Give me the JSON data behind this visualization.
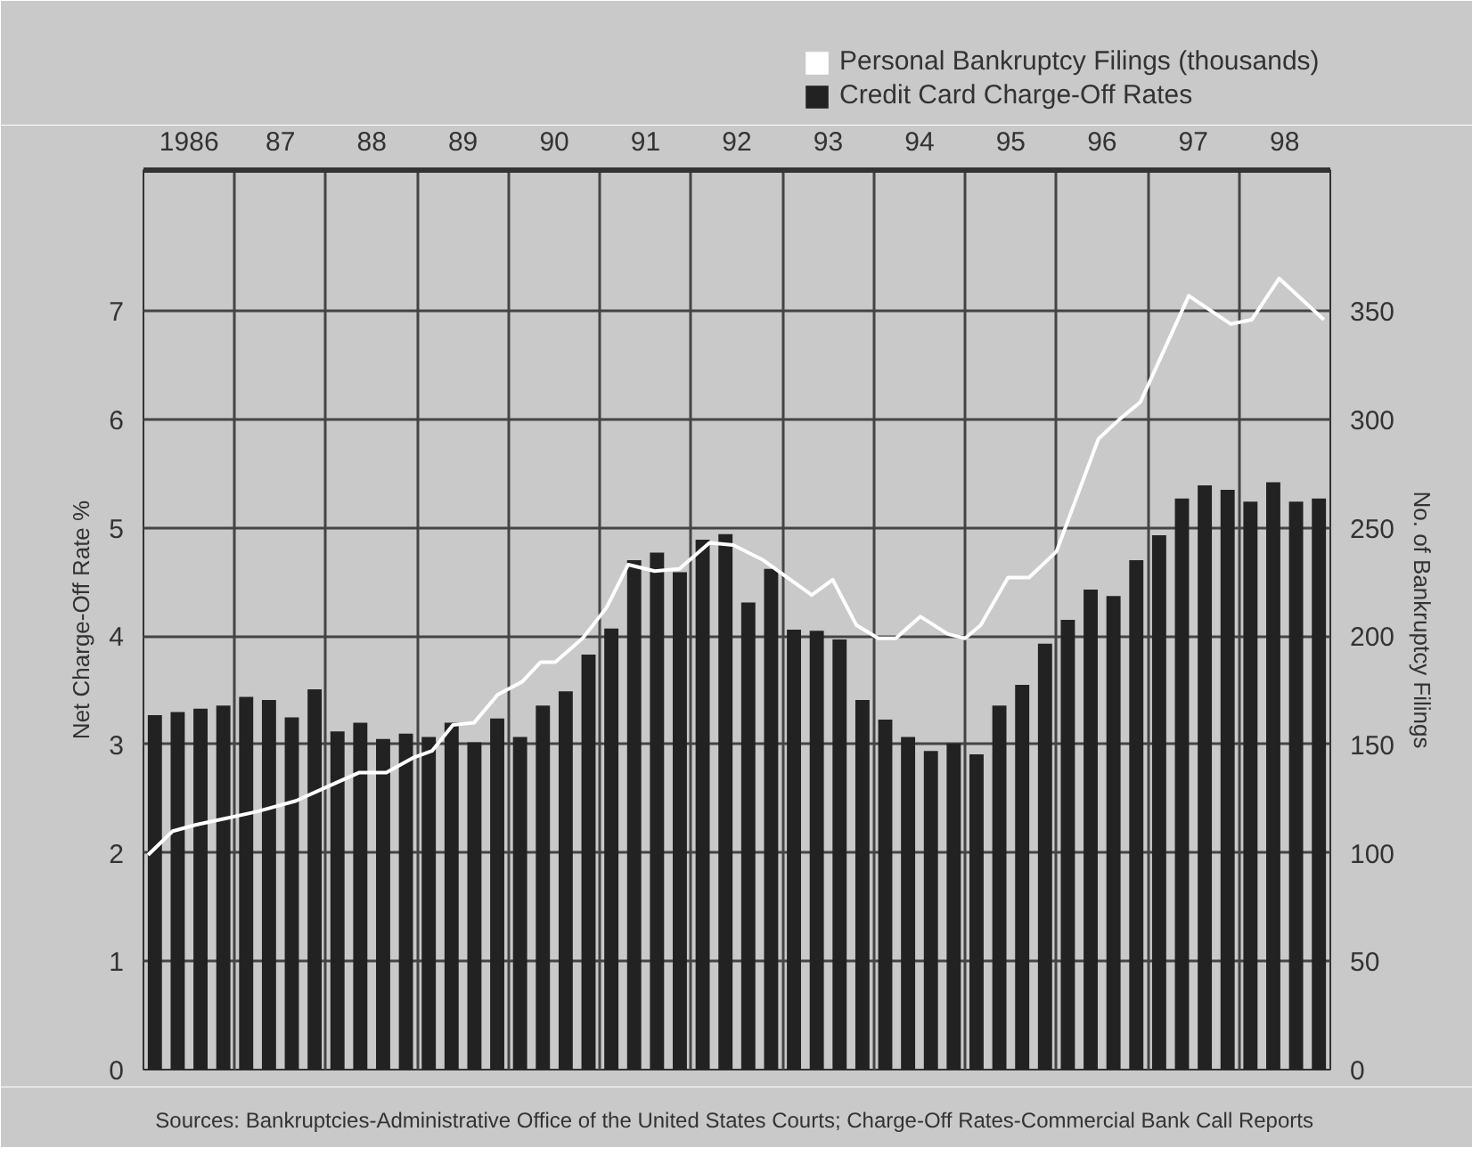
{
  "chart_data": {
    "type": "bar",
    "ylabel": "Net Charge-Off Rate %",
    "y2label": "No. of Bankruptcy Filings",
    "annotations": [
      "Sources: Bankruptcies-Administrative Office of the United States Courts; Charge-Off Rates-Commercial Bank Call Reports"
    ],
    "xlim": [
      1985.5,
      1998.5
    ],
    "xticks": [
      {
        "value": 1985.5,
        "label": null
      },
      1986,
      {
        "value": 1986.5,
        "label": null
      },
      {
        "value": 1987,
        "label": "87"
      },
      {
        "value": 1987.5,
        "label": null
      },
      {
        "value": 1988,
        "label": "88"
      },
      {
        "value": 1988.5,
        "label": null
      },
      {
        "value": 1989,
        "label": "89"
      },
      {
        "value": 1989.5,
        "label": null
      },
      {
        "value": 1990,
        "label": "90"
      },
      {
        "value": 1990.5,
        "label": null
      },
      {
        "value": 1991,
        "label": "91"
      },
      {
        "value": 1991.5,
        "label": null
      },
      {
        "value": 1992,
        "label": "92"
      },
      {
        "value": 1992.5,
        "label": null
      },
      {
        "value": 1993,
        "label": "93"
      },
      {
        "value": 1993.5,
        "label": null
      },
      {
        "value": 1994,
        "label": "94"
      },
      {
        "value": 1994.5,
        "label": null
      },
      {
        "value": 1995,
        "label": "95"
      },
      {
        "value": 1995.5,
        "label": null
      },
      {
        "value": 1996,
        "label": "96"
      },
      {
        "value": 1996.5,
        "label": null
      },
      {
        "value": 1997,
        "label": "97"
      },
      {
        "value": 1997.5,
        "label": null
      },
      {
        "value": 1998,
        "label": "98"
      },
      {
        "value": 1998.5,
        "label": null
      }
    ],
    "ylim": [
      0,
      8.3
    ],
    "yticks": [
      0,
      1,
      2,
      3,
      4,
      5,
      6,
      7
    ],
    "y2lim": [
      0,
      415
    ],
    "y2ticks": [
      0,
      50,
      100,
      150,
      200,
      250,
      300,
      350
    ],
    "grid": true,
    "legend": "top right",
    "series": [
      {
        "name": "Personal Bankruptcy Filings (thousands)",
        "type": "line",
        "axis": "y2",
        "color": "#ffffff",
        "marker": "none",
        "line_style": "solid",
        "x": [
          1985.55,
          1985.82,
          1986.08,
          1986.41,
          1986.74,
          1987.17,
          1987.54,
          1987.86,
          1988.16,
          1988.46,
          1988.66,
          1988.89,
          1989.12,
          1989.38,
          1989.65,
          1989.85,
          1990.01,
          1990.31,
          1990.57,
          1990.81,
          1991.1,
          1991.37,
          1991.7,
          1991.96,
          1992.29,
          1992.82,
          1993.05,
          1993.31,
          1993.55,
          1993.74,
          1994.01,
          1994.31,
          1994.5,
          1994.67,
          1994.97,
          1995.2,
          1995.5,
          1995.96,
          1996.19,
          1996.42,
          1996.95,
          1997.41,
          1997.64,
          1997.94,
          1998.43
        ],
        "values": [
          99,
          110,
          113,
          116,
          119,
          124,
          131,
          137,
          137,
          144,
          147,
          159,
          160,
          173,
          179,
          188,
          188,
          199,
          213,
          233,
          230,
          231,
          243,
          242,
          235,
          219,
          226,
          205,
          199,
          199,
          209,
          201,
          199,
          205,
          227,
          227,
          239,
          291,
          300,
          308,
          357,
          344,
          346,
          365,
          346
        ]
      },
      {
        "name": "Credit Card Charge-Off Rates",
        "color": "#222222",
        "x": [
          1985.625,
          1985.875,
          1986.125,
          1986.375,
          1986.625,
          1986.875,
          1987.125,
          1987.375,
          1987.625,
          1987.875,
          1988.125,
          1988.375,
          1988.625,
          1988.875,
          1989.125,
          1989.375,
          1989.625,
          1989.875,
          1990.125,
          1990.375,
          1990.625,
          1990.875,
          1991.125,
          1991.375,
          1991.625,
          1991.875,
          1992.125,
          1992.375,
          1992.625,
          1992.875,
          1993.125,
          1993.375,
          1993.625,
          1993.875,
          1994.125,
          1994.375,
          1994.625,
          1994.875,
          1995.125,
          1995.375,
          1995.625,
          1995.875,
          1996.125,
          1996.375,
          1996.625,
          1996.875,
          1997.125,
          1997.375,
          1997.625,
          1997.875,
          1998.125,
          1998.375
        ],
        "values": [
          3.27,
          3.3,
          3.33,
          3.36,
          3.44,
          3.41,
          3.25,
          3.51,
          3.12,
          3.2,
          3.05,
          3.1,
          3.07,
          3.2,
          3.02,
          3.24,
          3.07,
          3.36,
          3.49,
          3.83,
          4.07,
          4.7,
          4.77,
          4.59,
          4.89,
          4.94,
          4.31,
          4.62,
          4.06,
          4.05,
          3.97,
          3.41,
          3.23,
          3.07,
          2.94,
          3.01,
          2.91,
          3.36,
          3.55,
          3.93,
          4.15,
          4.43,
          4.37,
          4.7,
          4.93,
          5.27,
          5.39,
          5.35,
          5.24,
          5.42,
          5.24,
          5.27
        ]
      }
    ]
  }
}
